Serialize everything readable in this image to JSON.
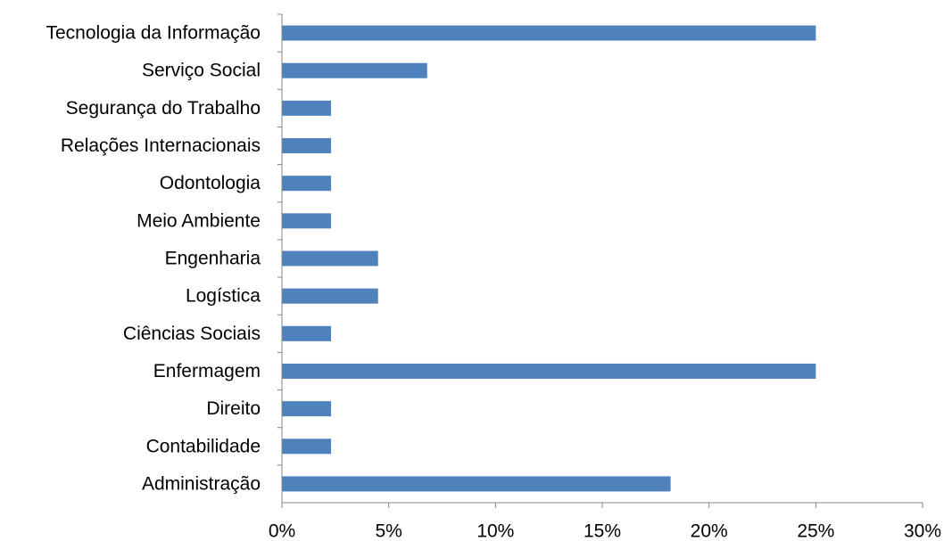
{
  "chart_data": {
    "type": "bar",
    "orientation": "horizontal",
    "categories": [
      "Tecnologia da Informação",
      "Serviço Social",
      "Segurança do Trabalho",
      "Relações Internacionais",
      "Odontologia",
      "Meio Ambiente",
      "Engenharia",
      "Logística",
      "Ciências Sociais",
      "Enfermagem",
      "Direito",
      "Contabilidade",
      "Administração"
    ],
    "values": [
      25.0,
      6.8,
      2.3,
      2.3,
      2.3,
      2.3,
      4.5,
      4.5,
      2.3,
      25.0,
      2.3,
      2.3,
      18.2
    ],
    "xlim": [
      0,
      30
    ],
    "xticks": [
      0,
      5,
      10,
      15,
      20,
      25,
      30
    ],
    "xtick_labels": [
      "0%",
      "5%",
      "10%",
      "15%",
      "20%",
      "25%",
      "30%"
    ],
    "bar_color": "#4f81bd",
    "grid": false,
    "title": "",
    "xlabel": "",
    "ylabel": ""
  }
}
